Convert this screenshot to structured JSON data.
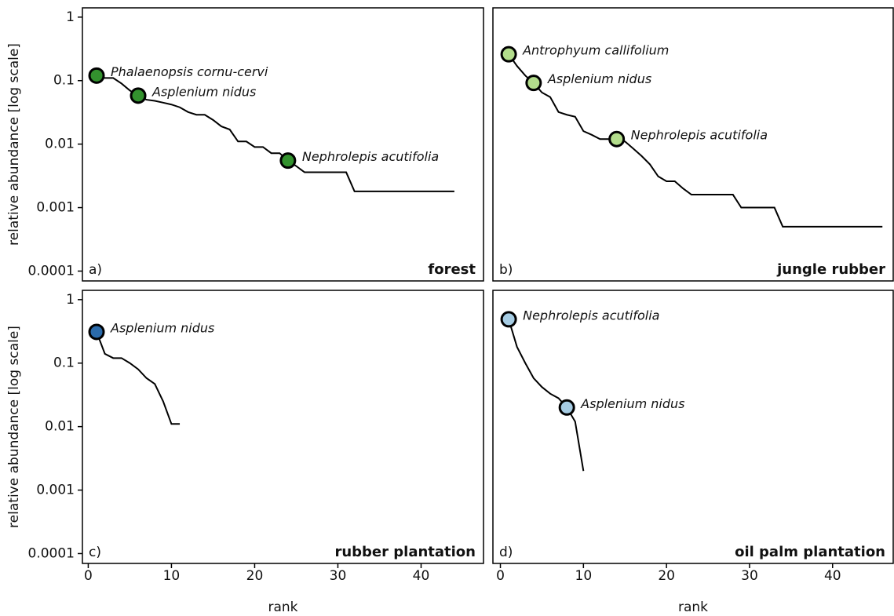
{
  "chart_data": [
    {
      "type": "line",
      "panel_label": "a)",
      "habitat": "forest",
      "ylabel": "relative abundance [log scale]",
      "log_y": true,
      "xlim": [
        -0.7,
        47.5
      ],
      "ylim": [
        7e-05,
        1.4
      ],
      "yticks": [
        1,
        0.1,
        0.01,
        0.001,
        0.0001
      ],
      "series": [
        {
          "color": "#000000",
          "x": [
            1,
            2,
            3,
            4,
            5,
            6,
            7,
            8,
            9,
            10,
            11,
            12,
            13,
            14,
            15,
            16,
            17,
            18,
            19,
            20,
            21,
            22,
            23,
            24,
            25,
            26,
            27,
            28,
            29,
            30,
            31,
            32,
            33,
            34,
            35,
            36,
            37,
            38,
            39,
            40,
            41,
            42,
            43,
            44
          ],
          "values": [
            0.12,
            0.11,
            0.11,
            0.09,
            0.07,
            0.058,
            0.05,
            0.048,
            0.045,
            0.042,
            0.038,
            0.032,
            0.029,
            0.029,
            0.024,
            0.019,
            0.017,
            0.011,
            0.011,
            0.009,
            0.009,
            0.0072,
            0.0072,
            0.0055,
            0.0045,
            0.0036,
            0.0036,
            0.0036,
            0.0036,
            0.0036,
            0.0036,
            0.0018,
            0.0018,
            0.0018,
            0.0018,
            0.0018,
            0.0018,
            0.0018,
            0.0018,
            0.0018,
            0.0018,
            0.0018,
            0.0018,
            0.0018
          ]
        }
      ],
      "highlights": [
        {
          "label": "Phalaenopsis cornu-cervi",
          "x": 1,
          "value": 0.12
        },
        {
          "label": "Asplenium nidus",
          "x": 6,
          "value": 0.058
        },
        {
          "label": "Nephrolepis acutifolia",
          "x": 24,
          "value": 0.0055
        }
      ],
      "highlight_color": "#33922e"
    },
    {
      "type": "line",
      "panel_label": "b)",
      "habitat": "jungle rubber",
      "log_y": true,
      "xlim": [
        -0.9,
        47.3
      ],
      "ylim": [
        7e-05,
        1.4
      ],
      "series": [
        {
          "color": "#000000",
          "x": [
            1,
            2,
            3,
            4,
            5,
            6,
            7,
            8,
            9,
            10,
            11,
            12,
            13,
            14,
            15,
            16,
            17,
            18,
            19,
            20,
            21,
            22,
            23,
            24,
            25,
            26,
            27,
            28,
            29,
            30,
            31,
            32,
            33,
            34,
            35,
            36,
            37,
            38,
            39,
            40,
            41,
            42,
            43,
            44,
            45,
            46
          ],
          "values": [
            0.26,
            0.17,
            0.12,
            0.092,
            0.065,
            0.055,
            0.032,
            0.029,
            0.027,
            0.016,
            0.014,
            0.012,
            0.012,
            0.012,
            0.011,
            0.0085,
            0.0065,
            0.0048,
            0.0031,
            0.0026,
            0.0026,
            0.002,
            0.0016,
            0.0016,
            0.0016,
            0.0016,
            0.0016,
            0.0016,
            0.001,
            0.001,
            0.001,
            0.001,
            0.001,
            0.0005,
            0.0005,
            0.0005,
            0.0005,
            0.0005,
            0.0005,
            0.0005,
            0.0005,
            0.0005,
            0.0005,
            0.0005,
            0.0005,
            0.0005
          ]
        }
      ],
      "highlights": [
        {
          "label": "Antrophyum callifolium",
          "x": 1,
          "value": 0.26
        },
        {
          "label": "Asplenium nidus",
          "x": 4,
          "value": 0.092
        },
        {
          "label": "Nephrolepis acutifolia",
          "x": 14,
          "value": 0.012
        }
      ],
      "highlight_color": "#b3dd8c"
    },
    {
      "type": "line",
      "panel_label": "c)",
      "habitat": "rubber plantation",
      "ylabel": "relative abundance [log scale]",
      "xlabel": "rank",
      "log_y": true,
      "xlim": [
        -0.7,
        47.5
      ],
      "ylim": [
        7e-05,
        1.4
      ],
      "yticks": [
        1,
        0.1,
        0.01,
        0.001,
        0.0001
      ],
      "xticks": [
        0,
        10,
        20,
        30,
        40
      ],
      "series": [
        {
          "color": "#000000",
          "x": [
            1,
            2,
            3,
            4,
            5,
            6,
            7,
            8,
            9,
            10,
            11
          ],
          "values": [
            0.31,
            0.14,
            0.12,
            0.12,
            0.1,
            0.08,
            0.058,
            0.047,
            0.025,
            0.011,
            0.011
          ]
        }
      ],
      "highlights": [
        {
          "label": "Asplenium nidus",
          "x": 1,
          "value": 0.31
        }
      ],
      "highlight_color": "#2b6bab"
    },
    {
      "type": "line",
      "panel_label": "d)",
      "habitat": "oil palm plantation",
      "xlabel": "rank",
      "log_y": true,
      "xlim": [
        -0.9,
        47.3
      ],
      "ylim": [
        7e-05,
        1.4
      ],
      "xticks": [
        0,
        10,
        20,
        30,
        40
      ],
      "series": [
        {
          "color": "#000000",
          "x": [
            1,
            2,
            3,
            4,
            5,
            6,
            7,
            8,
            9,
            10
          ],
          "values": [
            0.49,
            0.18,
            0.1,
            0.058,
            0.042,
            0.033,
            0.028,
            0.02,
            0.012,
            0.002
          ]
        }
      ],
      "highlights": [
        {
          "label": "Nephrolepis acutifolia",
          "x": 1,
          "value": 0.49
        },
        {
          "label": "Asplenium nidus",
          "x": 8,
          "value": 0.02
        }
      ],
      "highlight_color": "#a6cce3"
    }
  ]
}
